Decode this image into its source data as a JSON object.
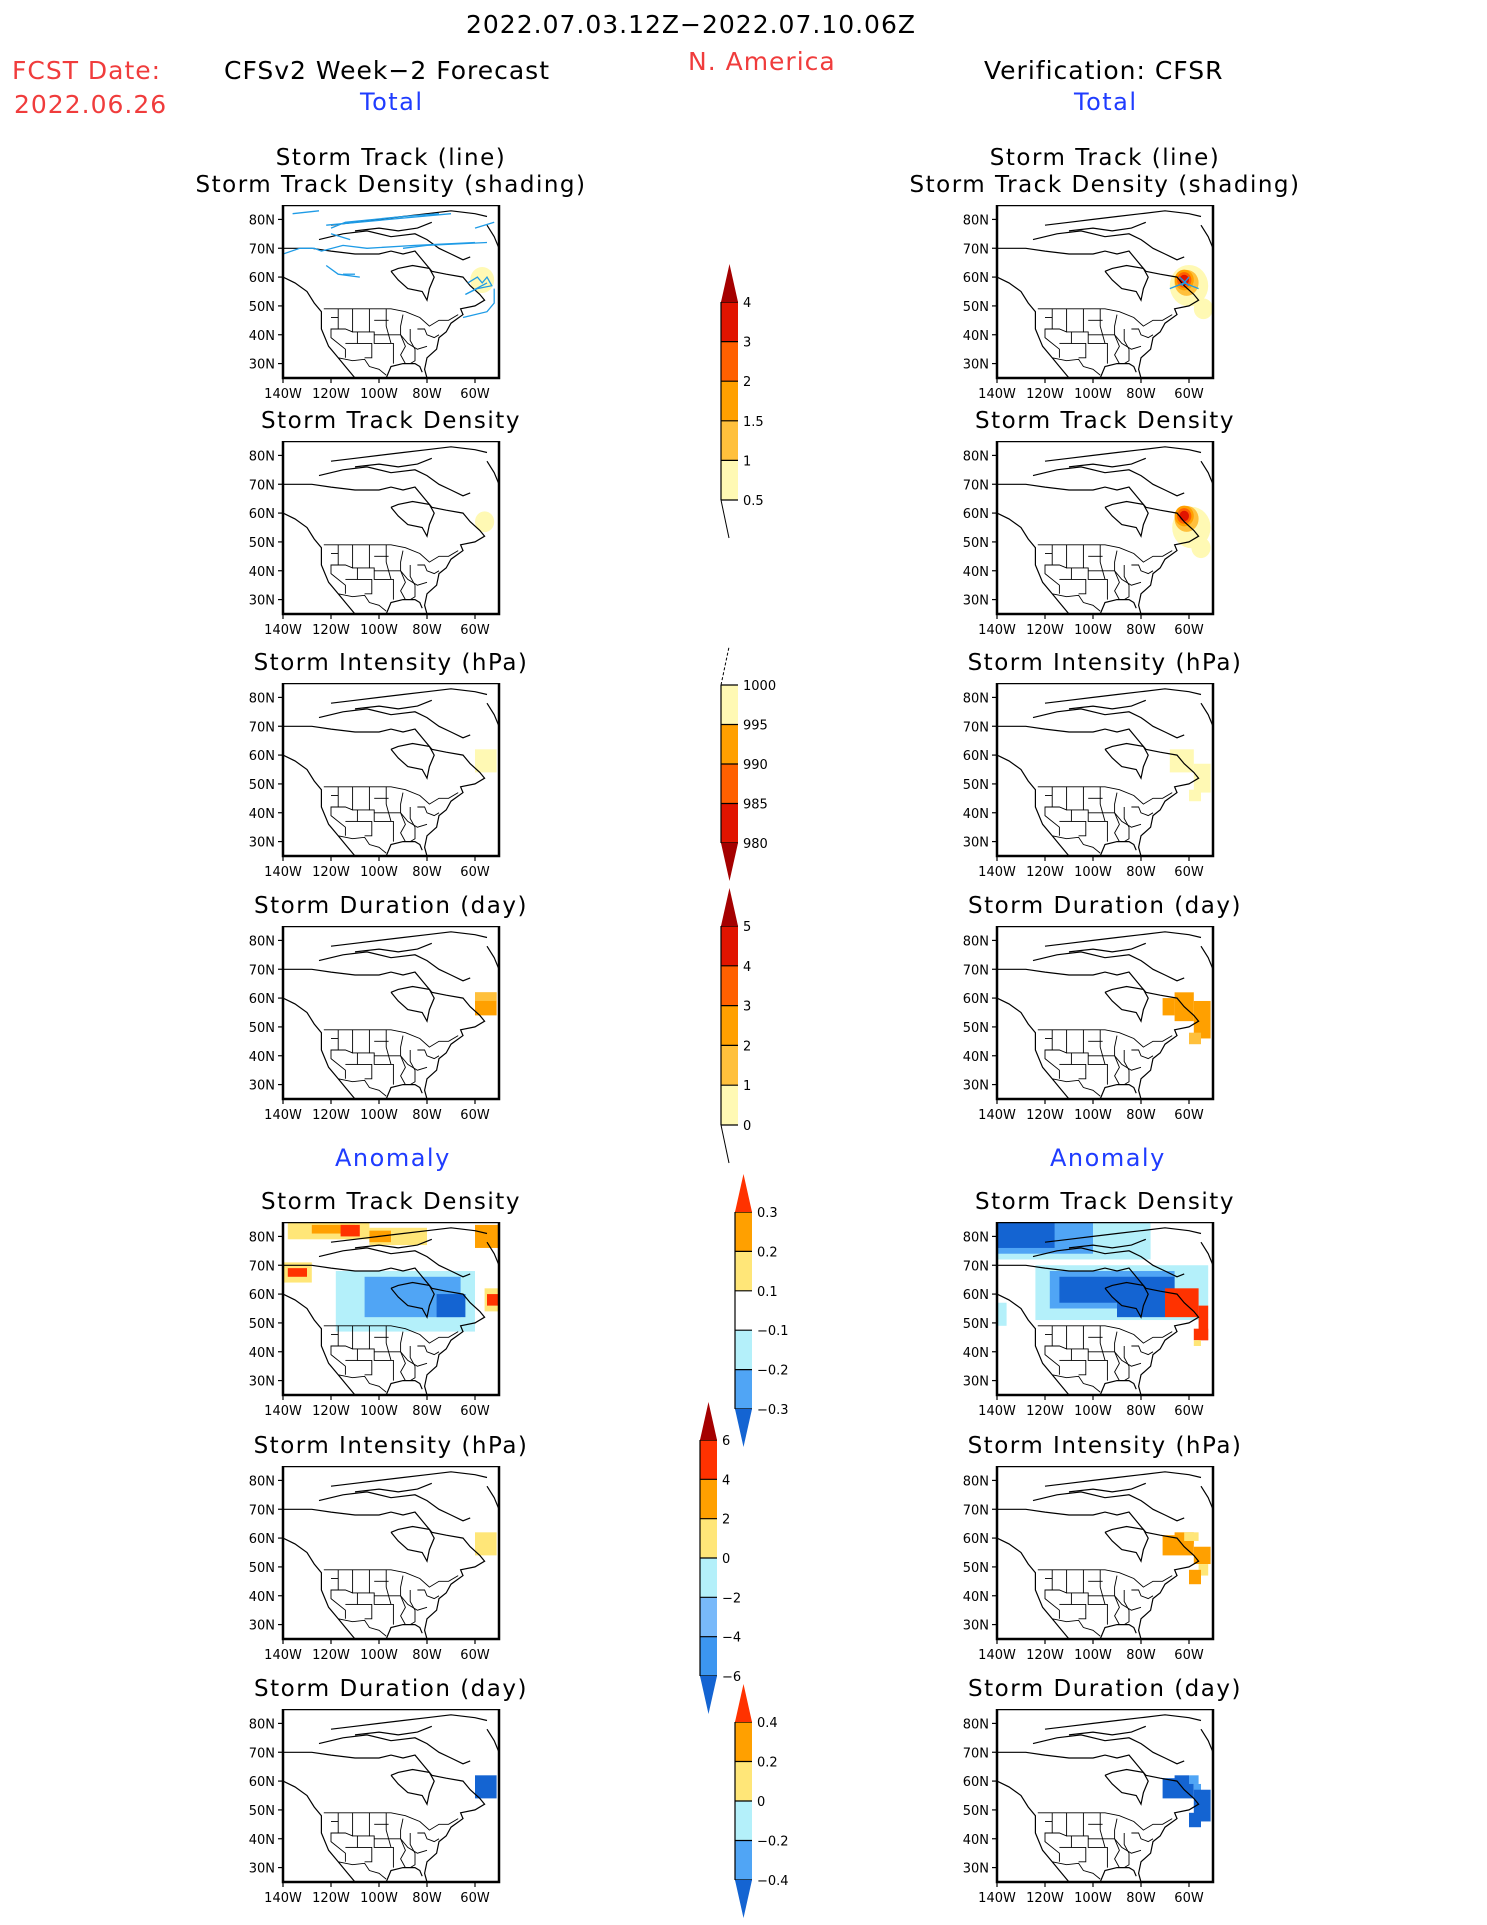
{
  "header": {
    "period": "2022.07.03.12Z−2022.07.10.06Z",
    "region": "N. America",
    "fcst_label": "FCST Date:",
    "fcst_date": "2022.06.26",
    "left_title": "CFSv2 Week−2 Forecast",
    "right_title": "Verification: CFSR",
    "left_total": "Total",
    "right_total": "Total",
    "left_anomaly": "Anomaly",
    "right_anomaly": "Anomaly"
  },
  "colors": {
    "title_red": "#f03c3c",
    "section_blue": "#1f3cff",
    "track_line": "#1e9be6"
  },
  "axes": {
    "lat_ticks": [
      "80N",
      "70N",
      "60N",
      "50N",
      "40N",
      "30N"
    ],
    "lon_ticks": [
      "140W",
      "120W",
      "100W",
      "80W",
      "60W"
    ],
    "lat_range": [
      25,
      85
    ],
    "lon_range": [
      -140,
      -50
    ]
  },
  "chart_data": [
    {
      "id": "fc-track",
      "type": "heatmap",
      "title": "Storm Track (line)\nStorm Track Density (shading)",
      "title_lines": [
        "Storm Track (line)",
        "Storm Track Density (shading)"
      ],
      "column": "forecast",
      "section": "total",
      "cells": [
        {
          "lon": -57,
          "lat": 59,
          "value": 0.7,
          "r": 5
        }
      ],
      "tracks": [
        [
          [
            -136,
            82
          ],
          [
            -125,
            83
          ]
        ],
        [
          [
            -120,
            77
          ],
          [
            -114,
            79
          ],
          [
            -90,
            81
          ],
          [
            -75,
            82
          ]
        ],
        [
          [
            -122,
            78
          ],
          [
            -70,
            82
          ]
        ],
        [
          [
            -60,
            77
          ],
          [
            -52,
            79
          ]
        ],
        [
          [
            -140,
            68
          ],
          [
            -133,
            70
          ],
          [
            -127,
            70
          ],
          [
            -124,
            69
          ],
          [
            -115,
            71
          ],
          [
            -105,
            70
          ],
          [
            -85,
            71
          ],
          [
            -60,
            72
          ]
        ],
        [
          [
            -120,
            75
          ],
          [
            -112,
            73
          ]
        ],
        [
          [
            -90,
            70
          ],
          [
            -80,
            71
          ],
          [
            -55,
            72
          ]
        ],
        [
          [
            -122,
            64
          ],
          [
            -117,
            61
          ],
          [
            -108,
            60
          ]
        ],
        [
          [
            -115,
            61
          ],
          [
            -110,
            61
          ]
        ],
        [
          [
            -63,
            58
          ],
          [
            -59,
            60
          ],
          [
            -57,
            58
          ],
          [
            -55,
            60
          ],
          [
            -53,
            57
          ],
          [
            -59,
            56
          ],
          [
            -64,
            54
          ]
        ],
        [
          [
            -64,
            54
          ],
          [
            -55,
            58
          ]
        ],
        [
          [
            -52,
            56
          ],
          [
            -52,
            51
          ],
          [
            -55,
            48
          ],
          [
            -65,
            46
          ]
        ]
      ]
    },
    {
      "id": "fc-density",
      "type": "heatmap",
      "title": "Storm Track Density",
      "title_lines": [
        "Storm Track Density"
      ],
      "column": "forecast",
      "section": "total",
      "cells": [
        {
          "lon": -56,
          "lat": 57,
          "value": 0.7,
          "r": 4
        }
      ]
    },
    {
      "id": "fc-intensity",
      "type": "heatmap",
      "title": "Storm Intensity (hPa)",
      "title_lines": [
        "Storm Intensity (hPa)"
      ],
      "column": "forecast",
      "section": "total",
      "cells": [
        {
          "lon": -60,
          "lat": 54,
          "lon2": -51,
          "lat2": 62,
          "value": 998
        }
      ]
    },
    {
      "id": "fc-duration",
      "type": "heatmap",
      "title": "Storm Duration (day)",
      "title_lines": [
        "Storm Duration (day)"
      ],
      "column": "forecast",
      "section": "total",
      "cells": [
        {
          "lon": -60,
          "lat": 54,
          "lon2": -51,
          "lat2": 62,
          "value": 2.5
        },
        {
          "lon": -60,
          "lat": 59,
          "lon2": -51,
          "lat2": 62,
          "value": 1.5
        }
      ]
    },
    {
      "id": "vf-track",
      "type": "heatmap",
      "title": "Storm Track (line)\nStorm Track Density (shading)",
      "title_lines": [
        "Storm Track (line)",
        "Storm Track Density (shading)"
      ],
      "column": "verification",
      "section": "total",
      "cells": [
        {
          "lon": -60,
          "lat": 57,
          "value": 0.7,
          "r": 8
        },
        {
          "lon": -54,
          "lat": 49,
          "value": 0.7,
          "r": 4
        },
        {
          "lon": -61,
          "lat": 58,
          "value": 1.2,
          "r": 5
        },
        {
          "lon": -62,
          "lat": 59,
          "value": 1.7,
          "r": 4
        },
        {
          "lon": -62,
          "lat": 59,
          "value": 2.5,
          "r": 3
        },
        {
          "lon": -62,
          "lat": 59,
          "value": 3.5,
          "r": 2
        }
      ],
      "tracks": [
        [
          [
            -68,
            56
          ],
          [
            -62,
            58
          ],
          [
            -56,
            56
          ]
        ],
        [
          [
            -63,
            57
          ],
          [
            -60,
            60
          ]
        ],
        [
          [
            -64,
            60
          ],
          [
            -60,
            57
          ]
        ]
      ]
    },
    {
      "id": "vf-density",
      "type": "heatmap",
      "title": "Storm Track Density",
      "title_lines": [
        "Storm Track Density"
      ],
      "column": "verification",
      "section": "total",
      "cells": [
        {
          "lon": -59,
          "lat": 55,
          "value": 0.7,
          "r": 8
        },
        {
          "lon": -55,
          "lat": 48,
          "value": 0.7,
          "r": 4
        },
        {
          "lon": -61,
          "lat": 58,
          "value": 1.2,
          "r": 5
        },
        {
          "lon": -62,
          "lat": 59,
          "value": 1.7,
          "r": 4
        },
        {
          "lon": -62,
          "lat": 59,
          "value": 2.5,
          "r": 3
        },
        {
          "lon": -62,
          "lat": 59,
          "value": 3.5,
          "r": 2
        }
      ]
    },
    {
      "id": "vf-intensity",
      "type": "heatmap",
      "title": "Storm Intensity (hPa)",
      "title_lines": [
        "Storm Intensity (hPa)"
      ],
      "column": "verification",
      "section": "total",
      "cells": [
        {
          "lon": -68,
          "lat": 54,
          "lon2": -58,
          "lat2": 62,
          "value": 998
        },
        {
          "lon": -58,
          "lat": 47,
          "lon2": -51,
          "lat2": 57,
          "value": 998
        },
        {
          "lon": -60,
          "lat": 44,
          "lon2": -55,
          "lat2": 48,
          "value": 998
        }
      ]
    },
    {
      "id": "vf-duration",
      "type": "heatmap",
      "title": "Storm Duration (day)",
      "title_lines": [
        "Storm Duration (day)"
      ],
      "column": "verification",
      "section": "total",
      "cells": [
        {
          "lon": -71,
          "lat": 54,
          "lon2": -66,
          "lat2": 60,
          "value": 2.5
        },
        {
          "lon": -66,
          "lat": 52,
          "lon2": -58,
          "lat2": 62,
          "value": 2.5
        },
        {
          "lon": -58,
          "lat": 46,
          "lon2": -51,
          "lat2": 59,
          "value": 2.5
        },
        {
          "lon": -60,
          "lat": 44,
          "lon2": -55,
          "lat2": 48,
          "value": 1.5
        }
      ]
    },
    {
      "id": "fc-anom-density",
      "type": "heatmap",
      "title": "Storm Track Density",
      "title_lines": [
        "Storm Track Density"
      ],
      "column": "forecast",
      "section": "anomaly",
      "cells": [
        {
          "lon": -138,
          "lat": 79,
          "lon2": -104,
          "lat2": 85,
          "value": 0.15
        },
        {
          "lon": -128,
          "lat": 81,
          "lon2": -110,
          "lat2": 84,
          "value": 0.25
        },
        {
          "lon": -116,
          "lat": 80,
          "lon2": -108,
          "lat2": 84,
          "value": 0.35
        },
        {
          "lon": -104,
          "lat": 77,
          "lon2": -80,
          "lat2": 83,
          "value": 0.15
        },
        {
          "lon": -104,
          "lat": 78,
          "lon2": -95,
          "lat2": 82,
          "value": 0.25
        },
        {
          "lon": -60,
          "lat": 76,
          "lon2": -50,
          "lat2": 84,
          "value": 0.25
        },
        {
          "lon": -140,
          "lat": 64,
          "lon2": -128,
          "lat2": 71,
          "value": 0.15
        },
        {
          "lon": -138,
          "lat": 66,
          "lon2": -130,
          "lat2": 69,
          "value": 0.35
        },
        {
          "lon": -118,
          "lat": 47,
          "lon2": -60,
          "lat2": 68,
          "value": -0.15
        },
        {
          "lon": -106,
          "lat": 52,
          "lon2": -66,
          "lat2": 66,
          "value": -0.25
        },
        {
          "lon": -76,
          "lat": 52,
          "lon2": -64,
          "lat2": 60,
          "value": -0.35
        },
        {
          "lon": -56,
          "lat": 54,
          "lon2": -50,
          "lat2": 62,
          "value": 0.15
        },
        {
          "lon": -55,
          "lat": 56,
          "lon2": -50,
          "lat2": 60,
          "value": 0.35
        }
      ]
    },
    {
      "id": "fc-anom-intensity",
      "type": "heatmap",
      "title": "Storm Intensity (hPa)",
      "title_lines": [
        "Storm Intensity (hPa)"
      ],
      "column": "forecast",
      "section": "anomaly",
      "cells": [
        {
          "lon": -60,
          "lat": 54,
          "lon2": -51,
          "lat2": 62,
          "value": 1
        }
      ]
    },
    {
      "id": "fc-anom-duration",
      "type": "heatmap",
      "title": "Storm Duration (day)",
      "title_lines": [
        "Storm Duration (day)"
      ],
      "column": "forecast",
      "section": "anomaly",
      "cells": [
        {
          "lon": -60,
          "lat": 54,
          "lon2": -51,
          "lat2": 62,
          "value": -0.5
        }
      ]
    },
    {
      "id": "vf-anom-density",
      "type": "heatmap",
      "title": "Storm Track Density",
      "title_lines": [
        "Storm Track Density"
      ],
      "column": "verification",
      "section": "anomaly",
      "cells": [
        {
          "lon": -140,
          "lat": 72,
          "lon2": -76,
          "lat2": 86,
          "value": -0.15
        },
        {
          "lon": -124,
          "lat": 51,
          "lon2": -52,
          "lat2": 70,
          "value": -0.15
        },
        {
          "lon": -140,
          "lat": 49,
          "lon2": -136,
          "lat2": 57,
          "value": -0.15
        },
        {
          "lon": -140,
          "lat": 74,
          "lon2": -100,
          "lat2": 86,
          "value": -0.25
        },
        {
          "lon": -140,
          "lat": 76,
          "lon2": -116,
          "lat2": 86,
          "value": -0.35
        },
        {
          "lon": -118,
          "lat": 55,
          "lon2": -66,
          "lat2": 68,
          "value": -0.25
        },
        {
          "lon": -114,
          "lat": 57,
          "lon2": -66,
          "lat2": 66,
          "value": -0.35
        },
        {
          "lon": -90,
          "lat": 52,
          "lon2": -70,
          "lat2": 62,
          "value": -0.35
        },
        {
          "lon": -70,
          "lat": 52,
          "lon2": -56,
          "lat2": 62,
          "value": 0.35
        },
        {
          "lon": -56,
          "lat": 44,
          "lon2": -52,
          "lat2": 56,
          "value": 0.35
        },
        {
          "lon": -58,
          "lat": 44,
          "lon2": -52,
          "lat2": 48,
          "value": 0.35
        },
        {
          "lon": -58,
          "lat": 42,
          "lon2": -55,
          "lat2": 44,
          "value": 0.15
        }
      ]
    },
    {
      "id": "vf-anom-intensity",
      "type": "heatmap",
      "title": "Storm Intensity (hPa)",
      "title_lines": [
        "Storm Intensity (hPa)"
      ],
      "column": "verification",
      "section": "anomaly",
      "cells": [
        {
          "lon": -71,
          "lat": 54,
          "lon2": -58,
          "lat2": 61,
          "value": 3
        },
        {
          "lon": -66,
          "lat": 58,
          "lon2": -58,
          "lat2": 62,
          "value": 3
        },
        {
          "lon": -62,
          "lat": 59,
          "lon2": -56,
          "lat2": 62,
          "value": 1
        },
        {
          "lon": -58,
          "lat": 51,
          "lon2": -51,
          "lat2": 57,
          "value": 3
        },
        {
          "lon": -56,
          "lat": 47,
          "lon2": -52,
          "lat2": 51,
          "value": 1
        },
        {
          "lon": -60,
          "lat": 44,
          "lon2": -55,
          "lat2": 49,
          "value": 3
        }
      ]
    },
    {
      "id": "vf-anom-duration",
      "type": "heatmap",
      "title": "Storm Duration (day)",
      "title_lines": [
        "Storm Duration (day)"
      ],
      "column": "verification",
      "section": "anomaly",
      "cells": [
        {
          "lon": -71,
          "lat": 54,
          "lon2": -58,
          "lat2": 61,
          "value": -0.5
        },
        {
          "lon": -66,
          "lat": 58,
          "lon2": -60,
          "lat2": 62,
          "value": -0.5
        },
        {
          "lon": -60,
          "lat": 59,
          "lon2": -56,
          "lat2": 62,
          "value": -0.3
        },
        {
          "lon": -58,
          "lat": 56,
          "lon2": -55,
          "lat2": 59,
          "value": -0.3
        },
        {
          "lon": -58,
          "lat": 46,
          "lon2": -51,
          "lat2": 57,
          "value": -0.5
        },
        {
          "lon": -60,
          "lat": 44,
          "lon2": -55,
          "lat2": 49,
          "value": -0.5
        }
      ]
    }
  ],
  "colorbars": [
    {
      "id": "cb-density",
      "labels": [
        "4",
        "3",
        "2",
        "1.5",
        "1",
        "0.5"
      ],
      "levels": [
        0.5,
        1,
        1.5,
        2,
        3,
        4
      ],
      "colors": [
        "#fff9b4",
        "#ffc03c",
        "#ffa000",
        "#ff6000",
        "#e11400"
      ],
      "over": "#a50000",
      "under": null
    },
    {
      "id": "cb-intensity",
      "labels": [
        "1000",
        "995",
        "990",
        "985",
        "980"
      ],
      "levels": [
        980,
        985,
        990,
        995,
        1000
      ],
      "colors": [
        "#e11400",
        "#ff6000",
        "#ffa000",
        "#fff9b4"
      ],
      "over": null,
      "under": "#a50000"
    },
    {
      "id": "cb-duration",
      "labels": [
        "5",
        "4",
        "3",
        "2",
        "1",
        "0"
      ],
      "levels": [
        0,
        1,
        2,
        3,
        4,
        5
      ],
      "colors": [
        "#fff9b4",
        "#ffc03c",
        "#ffa000",
        "#ff6000",
        "#e11400"
      ],
      "over": "#a50000",
      "under": null
    },
    {
      "id": "cb-anom-density",
      "labels": [
        "0.3",
        "0.2",
        "0.1",
        "−0.1",
        "−0.2",
        "−0.3"
      ],
      "levels": [
        -0.3,
        -0.2,
        -0.1,
        0.1,
        0.2,
        0.3
      ],
      "colors": [
        "#50a5f5",
        "#b4f0fa",
        "#ffffff",
        "#ffe678",
        "#ffa000"
      ],
      "over": "#ff3200",
      "under": "#1464d2"
    },
    {
      "id": "cb-anom-intensity",
      "labels": [
        "6",
        "4",
        "2",
        "0",
        "−2",
        "−4",
        "−6"
      ],
      "levels": [
        -6,
        -4,
        -2,
        0,
        2,
        4,
        6
      ],
      "colors": [
        "#3c96f0",
        "#78b9fa",
        "#b4f0fa",
        "#ffe678",
        "#ffa000",
        "#ff3200"
      ],
      "over": "#a50000",
      "under": "#1464d2"
    },
    {
      "id": "cb-anom-duration",
      "labels": [
        "0.4",
        "0.2",
        "0",
        "−0.2",
        "−0.4"
      ],
      "levels": [
        -0.4,
        -0.2,
        0,
        0.2,
        0.4
      ],
      "colors": [
        "#50a5f5",
        "#b4f0fa",
        "#ffe678",
        "#ffa000"
      ],
      "over": "#ff3200",
      "under": "#1464d2"
    }
  ]
}
